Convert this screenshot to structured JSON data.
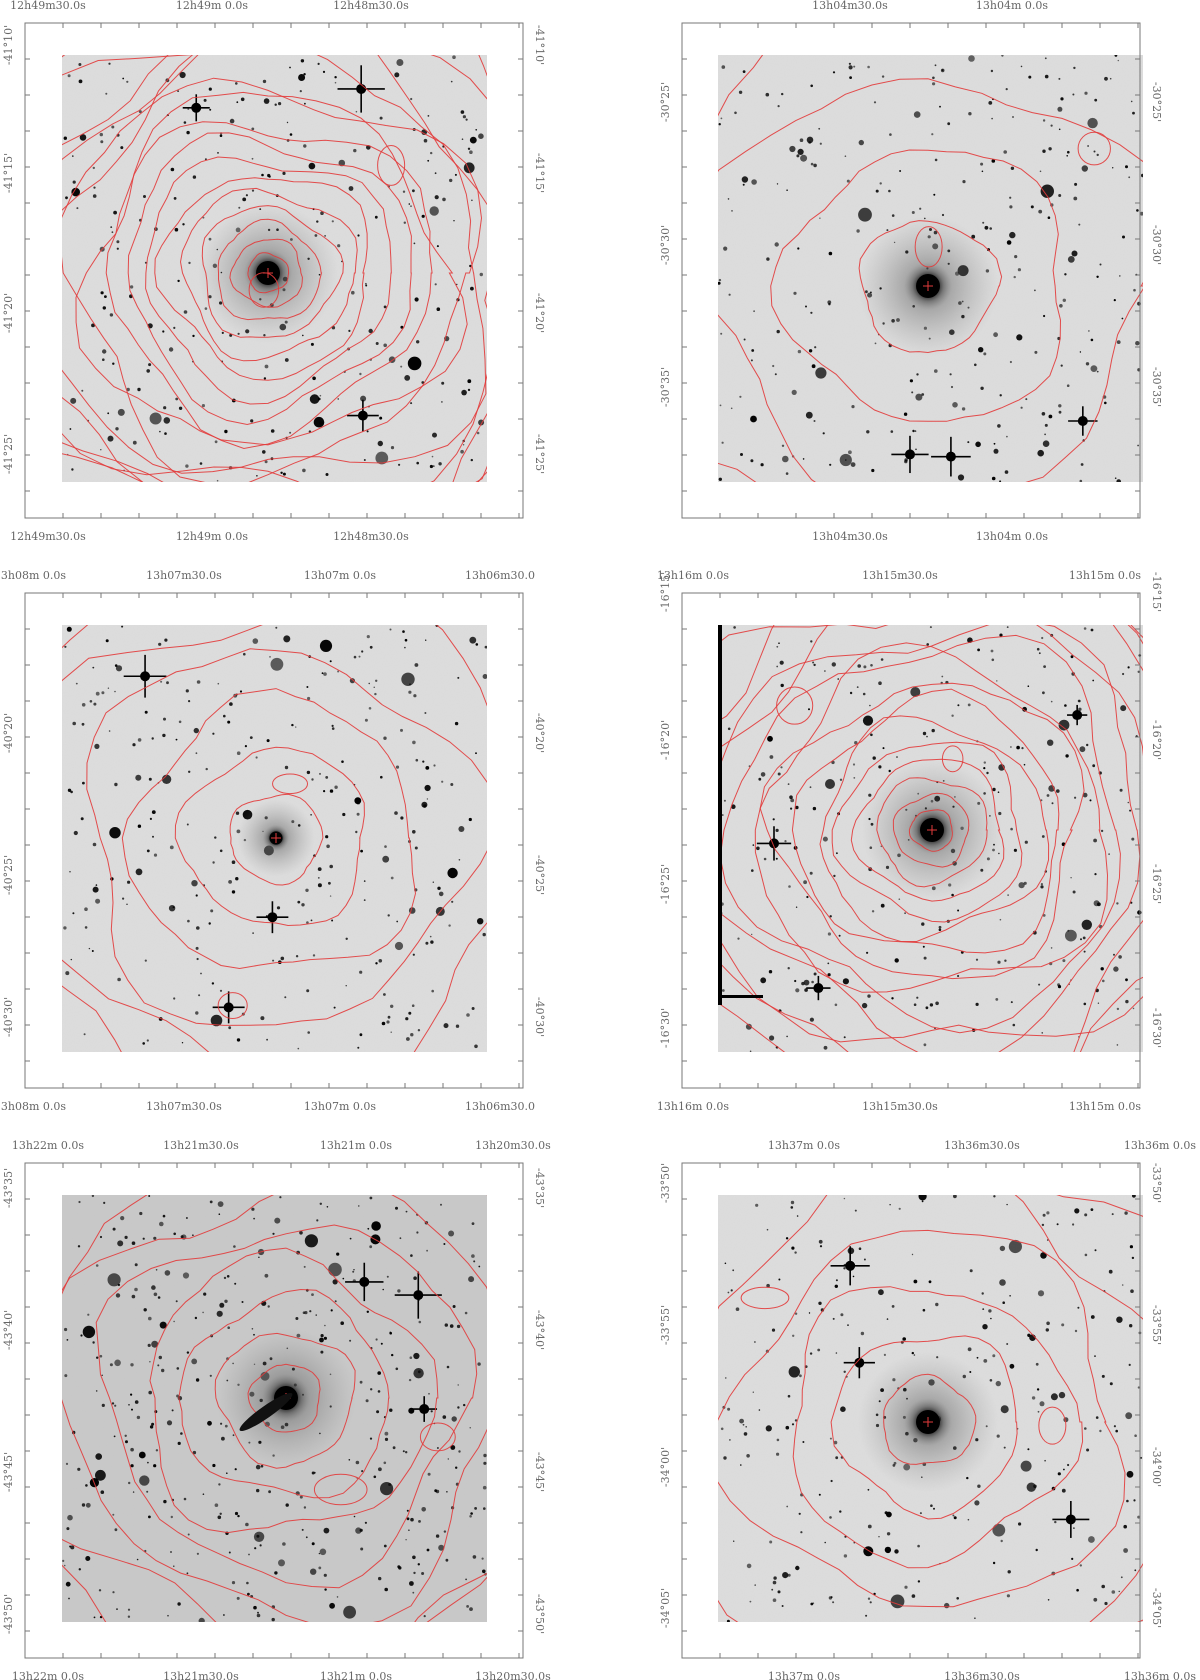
{
  "colors": {
    "contour": "#e23b3b",
    "sky": "#d9d9d9",
    "source": "#000000",
    "frame": "#777777",
    "label": "#666666"
  },
  "panels": [
    {
      "id": "p1",
      "ra_top": [
        "12h49m30.0s",
        "12h49m 0.0s",
        "12h48m30.0s"
      ],
      "ra_bottom": [
        "12h49m30.0s",
        "12h49m 0.0s",
        "12h48m30.0s"
      ],
      "dec_left": [
        "-41°10'",
        "-41°15'",
        "-41°20'",
        "-41°25'"
      ],
      "dec_right": [
        "-41°10'",
        "-41°15'",
        "-41°20'",
        "-41°25'"
      ],
      "contour_levels": 16,
      "galaxy_size": "large",
      "sky_tone": "light"
    },
    {
      "id": "p2",
      "ra_top": [
        "13h04m30.0s",
        "13h04m 0.0s"
      ],
      "ra_bottom": [
        "13h04m30.0s",
        "13h04m 0.0s"
      ],
      "dec_left": [
        "-30°25'",
        "-30°30'",
        "-30°35'"
      ],
      "dec_right": [
        "-30°25'",
        "-30°30'",
        "-30°35'"
      ],
      "contour_levels": 4,
      "galaxy_size": "large",
      "sky_tone": "light"
    },
    {
      "id": "p3",
      "ra_top": [
        "13h08m 0.0s",
        "13h07m30.0s",
        "13h07m 0.0s",
        "13h06m30.0"
      ],
      "ra_bottom": [
        "13h08m 0.0s",
        "13h07m30.0s",
        "13h07m 0.0s",
        "13h06m30.0"
      ],
      "dec_left": [
        "-40°20'",
        "-40°25'",
        "-40°30'"
      ],
      "dec_right": [
        "-40°20'",
        "-40°25'",
        "-40°30'"
      ],
      "contour_levels": 6,
      "galaxy_size": "small",
      "sky_tone": "light"
    },
    {
      "id": "p4",
      "ra_top": [
        "13h16m 0.0s",
        "13h15m30.0s",
        "13h15m 0.0s"
      ],
      "ra_bottom": [
        "13h16m 0.0s",
        "13h15m30.0s",
        "13h15m 0.0s"
      ],
      "dec_left": [
        "-16°15'",
        "-16°20'",
        "-16°25'",
        "-16°30'"
      ],
      "dec_right": [
        "-16°15'",
        "-16°20'",
        "-16°25'",
        "-16°30'"
      ],
      "contour_levels": 15,
      "galaxy_size": "large",
      "sky_tone": "light"
    },
    {
      "id": "p5",
      "ra_top": [
        "13h22m 0.0s",
        "13h21m30.0s",
        "13h21m 0.0s",
        "13h20m30.0s"
      ],
      "ra_bottom": [
        "13h22m 0.0s",
        "13h21m30.0s",
        "13h21m 0.0s",
        "13h20m30.0s"
      ],
      "dec_left": [
        "-43°35'",
        "-43°40'",
        "-43°45'",
        "-43°50'"
      ],
      "dec_right": [
        "-43°35'",
        "-43°40'",
        "-43°45'",
        "-43°50'"
      ],
      "contour_levels": 8,
      "galaxy_size": "large",
      "sky_tone": "dark"
    },
    {
      "id": "p6",
      "ra_top": [
        "13h37m 0.0s",
        "13h36m30.0s",
        "13h36m 0.0s"
      ],
      "ra_bottom": [
        "13h37m 0.0s",
        "13h36m30.0s",
        "13h36m 0.0s"
      ],
      "dec_left": [
        "-33°50'",
        "-33°55'",
        "-34°00'",
        "-34°05'"
      ],
      "dec_right": [
        "-33°50'",
        "-33°55'",
        "-34°00'",
        "-34°05'"
      ],
      "contour_levels": 6,
      "galaxy_size": "large",
      "sky_tone": "light"
    }
  ]
}
